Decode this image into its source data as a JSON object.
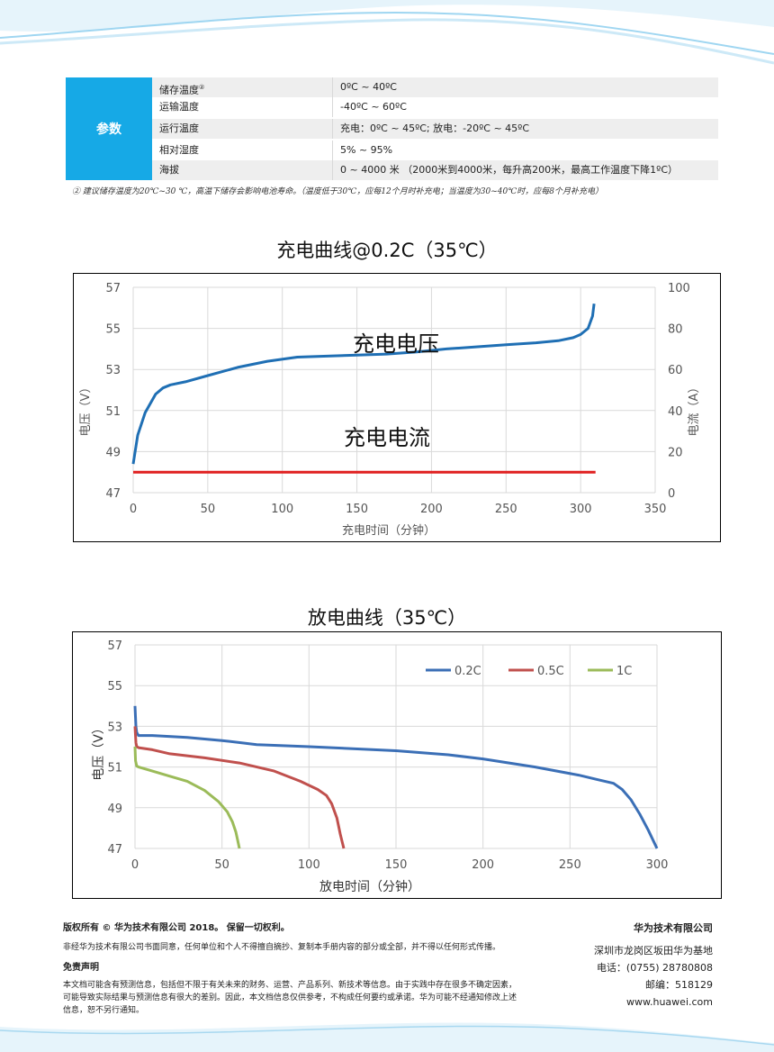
{
  "spec_table": {
    "header": "参数",
    "rows": [
      {
        "key": "储存温度",
        "sup": "②",
        "value": "0ºC ~ 40ºC"
      },
      {
        "key": "运输温度",
        "sup": "",
        "value": "-40ºC ~ 60ºC"
      },
      {
        "key": "运行温度",
        "sup": "",
        "value": "充电：0ºC ~ 45ºC; 放电：-20ºC ~ 45ºC"
      },
      {
        "key": "相对湿度",
        "sup": "",
        "value": "5% ~ 95%"
      },
      {
        "key": "海拔",
        "sup": "",
        "value": "0 ~ 4000 米 （2000米到4000米，每升高200米，最高工作温度下降1ºC）"
      }
    ],
    "footnote": "② 建议储存温度为20℃~30 ℃，高温下储存会影响电池寿命。（温度低于30℃，应每12个月时补充电；当温度为30~40℃时，应每8个月补充电）"
  },
  "charge_chart": {
    "title": "充电曲线@0.2C（35℃）",
    "xlabel": "充电时间（分钟）",
    "ylabel_left": "电压（V）",
    "ylabel_right": "电流（A）",
    "voltage_label": "充电电压",
    "current_label": "充电电流",
    "x_ticks": [
      "0",
      "50",
      "100",
      "150",
      "200",
      "250",
      "300",
      "350"
    ],
    "yl_ticks": [
      "47",
      "49",
      "51",
      "53",
      "55",
      "57"
    ],
    "yr_ticks": [
      "0",
      "20",
      "40",
      "60",
      "80",
      "100"
    ],
    "colors": {
      "voltage": "#1f6fb4",
      "current": "#e02020"
    }
  },
  "discharge_chart": {
    "title": "放电曲线（35℃）",
    "xlabel": "放电时间（分钟）",
    "ylabel": "电压（V）",
    "x_ticks": [
      "0",
      "50",
      "100",
      "150",
      "200",
      "250",
      "300"
    ],
    "y_ticks": [
      "47",
      "49",
      "51",
      "53",
      "55",
      "57"
    ],
    "legend": [
      {
        "name": "0.2C",
        "color": "#3b6fb6"
      },
      {
        "name": "0.5C",
        "color": "#c0504d"
      },
      {
        "name": "1C",
        "color": "#9bbb59"
      }
    ]
  },
  "chart_data": [
    {
      "type": "line",
      "title": "充电曲线@0.2C（35℃）",
      "xlabel": "充电时间（分钟）",
      "ylabel": "电压（V）",
      "y2label": "电流（A）",
      "xlim": [
        0,
        350
      ],
      "ylim": [
        47,
        57
      ],
      "y2lim": [
        0,
        100
      ],
      "grid": true,
      "series": [
        {
          "name": "充电电压",
          "axis": "left",
          "color": "#1f6fb4",
          "x": [
            0,
            3,
            8,
            15,
            20,
            25,
            35,
            50,
            70,
            90,
            110,
            130,
            150,
            170,
            190,
            210,
            230,
            250,
            270,
            285,
            295,
            300,
            305,
            308,
            309
          ],
          "y": [
            48.4,
            49.8,
            50.9,
            51.8,
            52.1,
            52.25,
            52.4,
            52.7,
            53.1,
            53.4,
            53.6,
            53.65,
            53.7,
            53.75,
            53.85,
            54.0,
            54.1,
            54.2,
            54.3,
            54.4,
            54.55,
            54.7,
            55.0,
            55.6,
            56.2
          ]
        },
        {
          "name": "充电电流",
          "axis": "right",
          "color": "#e02020",
          "x": [
            0,
            310
          ],
          "y": [
            10,
            10
          ]
        }
      ]
    },
    {
      "type": "line",
      "title": "放电曲线（35℃）",
      "xlabel": "放电时间（分钟）",
      "ylabel": "电压（V）",
      "xlim": [
        0,
        300
      ],
      "ylim": [
        47,
        57
      ],
      "grid": true,
      "legend": "top-right",
      "series": [
        {
          "name": "0.2C",
          "color": "#3b6fb6",
          "x": [
            0,
            0.5,
            1,
            2,
            5,
            10,
            30,
            50,
            70,
            100,
            150,
            180,
            200,
            230,
            255,
            265,
            275,
            280,
            285,
            290,
            295,
            300
          ],
          "y": [
            54.0,
            53.0,
            52.7,
            52.55,
            52.55,
            52.55,
            52.45,
            52.3,
            52.1,
            52.0,
            51.8,
            51.6,
            51.4,
            51.0,
            50.6,
            50.4,
            50.2,
            49.9,
            49.4,
            48.7,
            47.9,
            47.0
          ]
        },
        {
          "name": "0.5C",
          "color": "#c0504d",
          "x": [
            0,
            0.5,
            1,
            2,
            10,
            20,
            40,
            60,
            80,
            95,
            105,
            110,
            113,
            116,
            118,
            120
          ],
          "y": [
            53.0,
            52.2,
            52.0,
            51.95,
            51.85,
            51.65,
            51.45,
            51.2,
            50.8,
            50.3,
            49.9,
            49.6,
            49.2,
            48.5,
            47.7,
            47.0
          ]
        },
        {
          "name": "1C",
          "color": "#9bbb59",
          "x": [
            0,
            0.3,
            1,
            2,
            10,
            20,
            30,
            40,
            48,
            53,
            56,
            58,
            59,
            60
          ],
          "y": [
            52.0,
            51.3,
            51.05,
            51.0,
            50.8,
            50.55,
            50.3,
            49.85,
            49.3,
            48.8,
            48.3,
            47.8,
            47.4,
            47.0
          ]
        }
      ]
    }
  ],
  "footer": {
    "copyright": "版权所有 © 华为技术有限公司 2018。 保留一切权利。",
    "notice": "非经华为技术有限公司书面同意，任何单位和个人不得擅自摘抄、复制本手册内容的部分或全部，并不得以任何形式传播。",
    "disclaimer_title": "免责声明",
    "disclaimer_lines": [
      "本文档可能含有预测信息，包括但不限于有关未来的财务、运营、产品系列、新技术等信息。由于实践中存在很多不确定因素，",
      "可能导致实际结果与预测信息有很大的差别。因此，本文档信息仅供参考，不构成任何要约或承诺。华为可能不经通知修改上述",
      "信息，恕不另行通知。"
    ],
    "company": "华为技术有限公司",
    "address": "深圳市龙岗区坂田华为基地",
    "phone": "电话：(0755) 28780808",
    "postcode": "邮编：518129",
    "website": "www.huawei.com"
  }
}
